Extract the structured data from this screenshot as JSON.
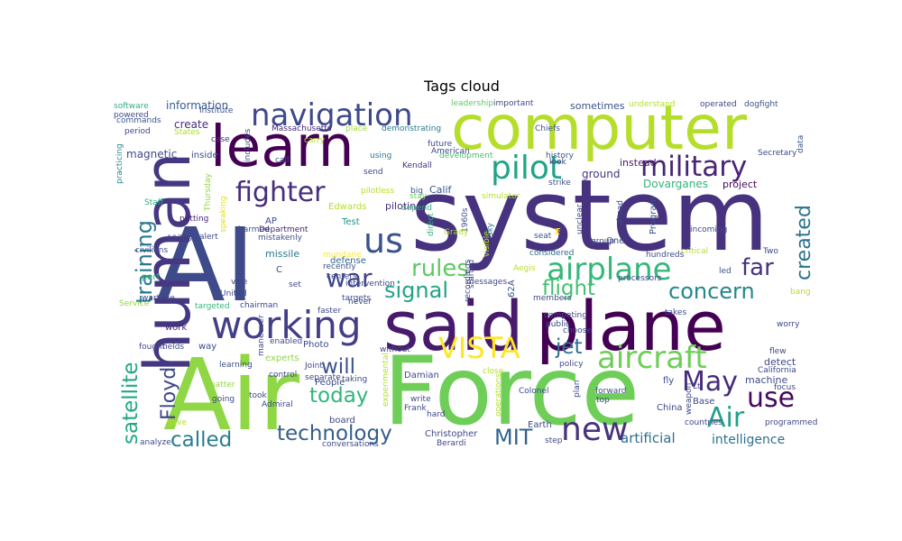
{
  "chart_data": {
    "type": "wordcloud",
    "title": "Tags cloud",
    "colormap": [
      "#440154",
      "#482878",
      "#3e4a89",
      "#31688e",
      "#26828e",
      "#1f9e89",
      "#35b779",
      "#6ece58",
      "#b5de2b",
      "#fde725"
    ],
    "words": [
      {
        "text": "system",
        "weight": 1.0,
        "color": "#46327e"
      },
      {
        "text": "AI",
        "weight": 0.97,
        "color": "#3e4a89"
      },
      {
        "text": "Air",
        "weight": 0.95,
        "color": "#8fd744"
      },
      {
        "text": "Force",
        "weight": 0.93,
        "color": "#6ece58"
      },
      {
        "text": "plane",
        "weight": 0.88,
        "color": "#440154"
      },
      {
        "text": "said",
        "weight": 0.82,
        "color": "#481a6c"
      },
      {
        "text": "human",
        "weight": 0.82,
        "color": "#453781"
      },
      {
        "text": "computer",
        "weight": 0.78,
        "color": "#b5de2b"
      },
      {
        "text": "learn",
        "weight": 0.72,
        "color": "#440154"
      },
      {
        "text": "working",
        "weight": 0.55,
        "color": "#433e85"
      },
      {
        "text": "airplane",
        "weight": 0.48,
        "color": "#35b779"
      },
      {
        "text": "pilot",
        "weight": 0.48,
        "color": "#20a486"
      },
      {
        "text": "navigation",
        "weight": 0.44,
        "color": "#3e4989"
      },
      {
        "text": "military",
        "weight": 0.38,
        "color": "#482475"
      },
      {
        "text": "us",
        "weight": 0.4,
        "color": "#3b528b"
      },
      {
        "text": "VISTA",
        "weight": 0.4,
        "color": "#fde725"
      },
      {
        "text": "aircraft",
        "weight": 0.38,
        "color": "#6ece58"
      },
      {
        "text": "new",
        "weight": 0.42,
        "color": "#46337e"
      },
      {
        "text": "Air",
        "weight": 0.34,
        "color": "#1fa187"
      },
      {
        "text": "fighter",
        "weight": 0.35,
        "color": "#472d7b"
      },
      {
        "text": "training",
        "weight": 0.34,
        "color": "#2a788e"
      },
      {
        "text": "satellite",
        "weight": 0.32,
        "color": "#22a884"
      },
      {
        "text": "war",
        "weight": 0.34,
        "color": "#404688"
      },
      {
        "text": "May",
        "weight": 0.34,
        "color": "#472c7a"
      },
      {
        "text": "use",
        "weight": 0.34,
        "color": "#46085c"
      },
      {
        "text": "created",
        "weight": 0.3,
        "color": "#2c728e"
      },
      {
        "text": "concern",
        "weight": 0.3,
        "color": "#24878e"
      },
      {
        "text": "rules",
        "weight": 0.3,
        "color": "#5ec962"
      },
      {
        "text": "far",
        "weight": 0.3,
        "color": "#46327e"
      },
      {
        "text": "signal",
        "weight": 0.28,
        "color": "#20a386"
      },
      {
        "text": "flight",
        "weight": 0.28,
        "color": "#44bf70"
      },
      {
        "text": "jet",
        "weight": 0.28,
        "color": "#2d708e"
      },
      {
        "text": "technology",
        "weight": 0.28,
        "color": "#355e8d"
      },
      {
        "text": "called",
        "weight": 0.28,
        "color": "#287d8e"
      },
      {
        "text": "MIT",
        "weight": 0.28,
        "color": "#33638d"
      },
      {
        "text": "today",
        "weight": 0.26,
        "color": "#31b57b"
      },
      {
        "text": "will",
        "weight": 0.26,
        "color": "#3b528b"
      },
      {
        "text": "Floyd",
        "weight": 0.26,
        "color": "#3f4788"
      },
      {
        "text": "artificial",
        "weight": 0.16,
        "color": "#2e6f8e"
      },
      {
        "text": "intelligence",
        "weight": 0.16,
        "color": "#2c718e"
      },
      {
        "text": "information",
        "weight": 0.12,
        "color": "#365c8d"
      },
      {
        "text": "software",
        "weight": 0.09,
        "color": "#2db27d"
      },
      {
        "text": "powered",
        "weight": 0.09,
        "color": "#3e4a89"
      },
      {
        "text": "commands",
        "weight": 0.09,
        "color": "#39568c"
      },
      {
        "text": "period",
        "weight": 0.09,
        "color": "#3f4889"
      },
      {
        "text": "practicing",
        "weight": 0.09,
        "color": "#25858e"
      },
      {
        "text": "Institute",
        "weight": 0.09,
        "color": "#3b528b"
      },
      {
        "text": "States",
        "weight": 0.09,
        "color": "#aadc32"
      },
      {
        "text": "create",
        "weight": 0.12,
        "color": "#472f7d"
      },
      {
        "text": "magnetic",
        "weight": 0.12,
        "color": "#3e4989"
      },
      {
        "text": "inside",
        "weight": 0.1,
        "color": "#3b528b"
      },
      {
        "text": "case",
        "weight": 0.09,
        "color": "#46327e"
      },
      {
        "text": "includes",
        "weight": 0.09,
        "color": "#3f4788"
      },
      {
        "text": "Thursday",
        "weight": 0.09,
        "color": "#8fd744"
      },
      {
        "text": "Massachusetts",
        "weight": 0.09,
        "color": "#482878"
      },
      {
        "text": "place",
        "weight": 0.09,
        "color": "#a5db36"
      },
      {
        "text": "demonstrating",
        "weight": 0.09,
        "color": "#2a788e"
      },
      {
        "text": "leadership",
        "weight": 0.09,
        "color": "#5ec962"
      },
      {
        "text": "important",
        "weight": 0.09,
        "color": "#3e4a89"
      },
      {
        "text": "Chiefs",
        "weight": 0.09,
        "color": "#3b528b"
      },
      {
        "text": "sometimes",
        "weight": 0.11,
        "color": "#3b528b"
      },
      {
        "text": "understand",
        "weight": 0.09,
        "color": "#b5de2b"
      },
      {
        "text": "operated",
        "weight": 0.09,
        "color": "#3e4989"
      },
      {
        "text": "dogfight",
        "weight": 0.09,
        "color": "#3b528b"
      },
      {
        "text": "Secretary",
        "weight": 0.09,
        "color": "#3e4989"
      },
      {
        "text": "data",
        "weight": 0.09,
        "color": "#39568c"
      },
      {
        "text": "project",
        "weight": 0.11,
        "color": "#46085c"
      },
      {
        "text": "instead",
        "weight": 0.11,
        "color": "#48186a"
      },
      {
        "text": "ground",
        "weight": 0.12,
        "color": "#453781"
      },
      {
        "text": "Dovarganes",
        "weight": 0.12,
        "color": "#31b57b"
      },
      {
        "text": "Staff",
        "weight": 0.09,
        "color": "#2db27d"
      },
      {
        "text": "speaking",
        "weight": 0.09,
        "color": "#dde318"
      },
      {
        "text": "putting",
        "weight": 0.09,
        "color": "#482173"
      },
      {
        "text": "1970s",
        "weight": 0.09,
        "color": "#3e4989"
      },
      {
        "text": "alert",
        "weight": 0.09,
        "color": "#3e4989"
      },
      {
        "text": "civilians",
        "weight": 0.09,
        "color": "#3b528b"
      },
      {
        "text": "Edwards",
        "weight": 0.1,
        "color": "#b5de2b"
      },
      {
        "text": "harmed",
        "weight": 0.09,
        "color": "#39568c"
      },
      {
        "text": "AP",
        "weight": 0.1,
        "color": "#3e4989"
      },
      {
        "text": "Department",
        "weight": 0.09,
        "color": "#482173"
      },
      {
        "text": "mistakenly",
        "weight": 0.09,
        "color": "#3b528b"
      },
      {
        "text": "missile",
        "weight": 0.11,
        "color": "#2a788e"
      },
      {
        "text": "Test",
        "weight": 0.1,
        "color": "#21918c"
      },
      {
        "text": "mundane",
        "weight": 0.09,
        "color": "#fde725"
      },
      {
        "text": "recently",
        "weight": 0.09,
        "color": "#3b528b"
      },
      {
        "text": "defense",
        "weight": 0.1,
        "color": "#31688e"
      },
      {
        "text": "intervention",
        "weight": 0.09,
        "color": "#3e4989"
      },
      {
        "text": "piloting",
        "weight": 0.11,
        "color": "#472d7b"
      },
      {
        "text": "Calif",
        "weight": 0.11,
        "color": "#39568c"
      },
      {
        "text": "pilotless",
        "weight": 0.09,
        "color": "#b5de2b"
      },
      {
        "text": "big",
        "weight": 0.09,
        "color": "#3b528b"
      },
      {
        "text": "Kendall",
        "weight": 0.09,
        "color": "#46327e"
      },
      {
        "text": "send",
        "weight": 0.09,
        "color": "#3e4989"
      },
      {
        "text": "call",
        "weight": 0.09,
        "color": "#39568c"
      },
      {
        "text": "using",
        "weight": 0.09,
        "color": "#2a788e"
      },
      {
        "text": "future",
        "weight": 0.09,
        "color": "#3e4989"
      },
      {
        "text": "development",
        "weight": 0.09,
        "color": "#44bf70"
      },
      {
        "text": "history",
        "weight": 0.09,
        "color": "#3b528b"
      },
      {
        "text": "look",
        "weight": 0.09,
        "color": "#3e4989"
      },
      {
        "text": "strike",
        "weight": 0.09,
        "color": "#3b528b"
      },
      {
        "text": "stay",
        "weight": 0.09,
        "color": "#6ece58"
      },
      {
        "text": "depend",
        "weight": 0.09,
        "color": "#2db27d"
      },
      {
        "text": "simulator",
        "weight": 0.09,
        "color": "#b5de2b"
      },
      {
        "text": "1960s",
        "weight": 0.09,
        "color": "#3b528b"
      },
      {
        "text": "direct",
        "weight": 0.09,
        "color": "#2db27d"
      },
      {
        "text": "Grady",
        "weight": 0.09,
        "color": "#b5de2b"
      },
      {
        "text": "visible",
        "weight": 0.09,
        "color": "#b5de2b"
      },
      {
        "text": "sky",
        "weight": 0.09,
        "color": "#2a788e"
      },
      {
        "text": "F",
        "weight": 0.1,
        "color": "#fde725"
      },
      {
        "text": "X",
        "weight": 0.1,
        "color": "#fde725"
      },
      {
        "text": "unclear",
        "weight": 0.09,
        "color": "#3b528b"
      },
      {
        "text": "ahead",
        "weight": 0.09,
        "color": "#3e4989"
      },
      {
        "text": "One",
        "weight": 0.1,
        "color": "#3e4989"
      },
      {
        "text": "Program",
        "weight": 0.1,
        "color": "#3b528b"
      },
      {
        "text": "incoming",
        "weight": 0.09,
        "color": "#3e4989"
      },
      {
        "text": "critical",
        "weight": 0.09,
        "color": "#b5de2b"
      },
      {
        "text": "hundreds",
        "weight": 0.09,
        "color": "#3e4989"
      },
      {
        "text": "considered",
        "weight": 0.09,
        "color": "#31688e"
      },
      {
        "text": "seat",
        "weight": 0.09,
        "color": "#3b528b"
      },
      {
        "text": "Aegis",
        "weight": 0.09,
        "color": "#b5de2b"
      },
      {
        "text": "Two",
        "weight": 0.09,
        "color": "#3e4989"
      },
      {
        "text": "led",
        "weight": 0.09,
        "color": "#3b528b"
      },
      {
        "text": "processors",
        "weight": 0.09,
        "color": "#3e4989"
      },
      {
        "text": "members",
        "weight": 0.09,
        "color": "#3e4989"
      },
      {
        "text": "62A",
        "weight": 0.1,
        "color": "#39568c"
      },
      {
        "text": "started",
        "weight": 0.09,
        "color": "#3e4989"
      },
      {
        "text": "messages",
        "weight": 0.09,
        "color": "#3e4989"
      },
      {
        "text": "recordings",
        "weight": 0.09,
        "color": "#3e4989"
      },
      {
        "text": "competing",
        "weight": 0.09,
        "color": "#3e4989"
      },
      {
        "text": "choose",
        "weight": 0.09,
        "color": "#3e4989"
      },
      {
        "text": "takes",
        "weight": 0.09,
        "color": "#3e4989"
      },
      {
        "text": "worry",
        "weight": 0.09,
        "color": "#3e4989"
      },
      {
        "text": "bang",
        "weight": 0.09,
        "color": "#b5de2b"
      },
      {
        "text": "part",
        "weight": 0.1,
        "color": "#35b779"
      },
      {
        "text": "wartime",
        "weight": 0.09,
        "color": "#3e4989"
      },
      {
        "text": "Service",
        "weight": 0.09,
        "color": "#8fd744"
      },
      {
        "text": "United",
        "weight": 0.09,
        "color": "#3e4989"
      },
      {
        "text": "vice",
        "weight": 0.09,
        "color": "#3e4989"
      },
      {
        "text": "chairman",
        "weight": 0.09,
        "color": "#3e4989"
      },
      {
        "text": "targeted",
        "weight": 0.09,
        "color": "#35b779"
      },
      {
        "text": "set",
        "weight": 0.09,
        "color": "#3e4989"
      },
      {
        "text": "targets",
        "weight": 0.09,
        "color": "#3e4989"
      },
      {
        "text": "never",
        "weight": 0.09,
        "color": "#3e4989"
      },
      {
        "text": "faster",
        "weight": 0.09,
        "color": "#3e4989"
      },
      {
        "text": "work",
        "weight": 0.1,
        "color": "#482878"
      },
      {
        "text": "fought",
        "weight": 0.09,
        "color": "#3e4989"
      },
      {
        "text": "fields",
        "weight": 0.09,
        "color": "#3e4989"
      },
      {
        "text": "way",
        "weight": 0.1,
        "color": "#3e4989"
      },
      {
        "text": "maneuver",
        "weight": 0.09,
        "color": "#3e4989"
      },
      {
        "text": "enabled",
        "weight": 0.09,
        "color": "#3e4989"
      },
      {
        "text": "Photo",
        "weight": 0.1,
        "color": "#3e4989"
      },
      {
        "text": "People",
        "weight": 0.1,
        "color": "#3e4989"
      },
      {
        "text": "C",
        "weight": 0.1,
        "color": "#3e4989"
      },
      {
        "text": "experts",
        "weight": 0.1,
        "color": "#8fd744"
      },
      {
        "text": "learning",
        "weight": 0.09,
        "color": "#3e4989"
      },
      {
        "text": "control",
        "weight": 0.09,
        "color": "#3e4989"
      },
      {
        "text": "separate",
        "weight": 0.09,
        "color": "#3e4989"
      },
      {
        "text": "without",
        "weight": 0.09,
        "color": "#3e4989"
      },
      {
        "text": "Joint",
        "weight": 0.09,
        "color": "#3e4989"
      },
      {
        "text": "taking",
        "weight": 0.09,
        "color": "#3e4989"
      },
      {
        "text": "chatter",
        "weight": 0.09,
        "color": "#8fd744"
      },
      {
        "text": "going",
        "weight": 0.09,
        "color": "#3e4989"
      },
      {
        "text": "took",
        "weight": 0.09,
        "color": "#3e4989"
      },
      {
        "text": "Admiral",
        "weight": 0.09,
        "color": "#3e4989"
      },
      {
        "text": "gave",
        "weight": 0.09,
        "color": "#b5de2b"
      },
      {
        "text": "analyze",
        "weight": 0.09,
        "color": "#3e4989"
      },
      {
        "text": "conversations",
        "weight": 0.09,
        "color": "#3e4989"
      },
      {
        "text": "board",
        "weight": 0.1,
        "color": "#3e4989"
      },
      {
        "text": "Damian",
        "weight": 0.1,
        "color": "#3e4989"
      },
      {
        "text": "write",
        "weight": 0.09,
        "color": "#3e4989"
      },
      {
        "text": "Frank",
        "weight": 0.09,
        "color": "#3e4989"
      },
      {
        "text": "hard",
        "weight": 0.09,
        "color": "#3e4989"
      },
      {
        "text": "Christopher",
        "weight": 0.1,
        "color": "#3e4989"
      },
      {
        "text": "Berardi",
        "weight": 0.09,
        "color": "#3e4989"
      },
      {
        "text": "experimental",
        "weight": 0.09,
        "color": "#b5de2b"
      },
      {
        "text": "operations",
        "weight": 0.09,
        "color": "#b5de2b"
      },
      {
        "text": "Colonel",
        "weight": 0.09,
        "color": "#3e4989"
      },
      {
        "text": "Earth",
        "weight": 0.1,
        "color": "#3e4989"
      },
      {
        "text": "step",
        "weight": 0.09,
        "color": "#3e4989"
      },
      {
        "text": "plan",
        "weight": 0.09,
        "color": "#3e4989"
      },
      {
        "text": "forward",
        "weight": 0.09,
        "color": "#3e4989"
      },
      {
        "text": "top",
        "weight": 0.09,
        "color": "#3e4989"
      },
      {
        "text": "China",
        "weight": 0.1,
        "color": "#3e4989"
      },
      {
        "text": "Base",
        "weight": 0.1,
        "color": "#3e4989"
      },
      {
        "text": "Lt",
        "weight": 0.09,
        "color": "#3e4989"
      },
      {
        "text": "weapon",
        "weight": 0.09,
        "color": "#3e4989"
      },
      {
        "text": "countries",
        "weight": 0.09,
        "color": "#3e4989"
      },
      {
        "text": "programmed",
        "weight": 0.09,
        "color": "#3e4989"
      },
      {
        "text": "fly",
        "weight": 0.1,
        "color": "#3e4989"
      },
      {
        "text": "machine",
        "weight": 0.11,
        "color": "#3e4989"
      },
      {
        "text": "focus",
        "weight": 0.09,
        "color": "#3e4989"
      },
      {
        "text": "detect",
        "weight": 0.11,
        "color": "#3e4989"
      },
      {
        "text": "California",
        "weight": 0.09,
        "color": "#3e4989"
      },
      {
        "text": "flew",
        "weight": 0.09,
        "color": "#3e4989"
      },
      {
        "text": "policy",
        "weight": 0.09,
        "color": "#3e4989"
      },
      {
        "text": "close",
        "weight": 0.09,
        "color": "#b5de2b"
      },
      {
        "text": "centers",
        "weight": 0.09,
        "color": "#3e4989"
      },
      {
        "text": "carry",
        "weight": 0.09,
        "color": "#b5de2b"
      },
      {
        "text": "American",
        "weight": 0.09,
        "color": "#3e4989"
      },
      {
        "text": "group",
        "weight": 0.09,
        "color": "#3e4989"
      },
      {
        "text": "public",
        "weight": 0.09,
        "color": "#3e4989"
      }
    ]
  }
}
